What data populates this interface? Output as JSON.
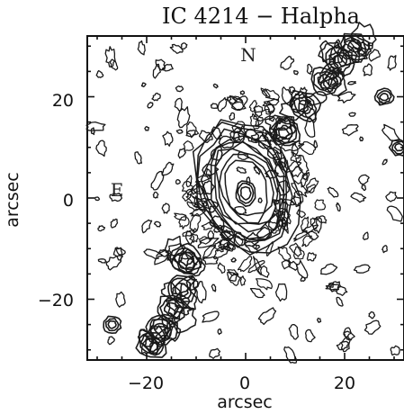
{
  "chart_data": {
    "type": "contour",
    "title": "IC 4214 − Halpha",
    "xlabel": "arcsec",
    "ylabel": "arcsec",
    "xlim": [
      -32,
      32
    ],
    "ylim": [
      -32,
      32
    ],
    "xticks": [
      -20,
      0,
      20
    ],
    "yticks": [
      -20,
      0,
      20
    ],
    "xtick_labels": [
      "−20",
      "0",
      "20"
    ],
    "ytick_labels": [
      "−20",
      "0",
      "20"
    ],
    "annotations": [
      {
        "text": "N",
        "x": 1,
        "y": 29
      },
      {
        "text": "E",
        "x": -25,
        "y": 2
      }
    ],
    "grid": false,
    "ring": {
      "x": 0,
      "y": 2,
      "rx": 8,
      "ry": 11,
      "angle": -20
    },
    "nucleus": {
      "x": 0,
      "y": 1,
      "rx": 2,
      "ry": 2.5
    },
    "arm_upper": [
      {
        "x": 8,
        "y": 13
      },
      {
        "x": 12,
        "y": 18
      },
      {
        "x": 16,
        "y": 23
      },
      {
        "x": 19,
        "y": 27
      },
      {
        "x": 22,
        "y": 30
      }
    ],
    "arm_lower": [
      {
        "x": -12,
        "y": -12
      },
      {
        "x": -13,
        "y": -18
      },
      {
        "x": -15,
        "y": -22
      },
      {
        "x": -17,
        "y": -26
      },
      {
        "x": -19,
        "y": -29
      }
    ],
    "isolated_knots": [
      {
        "x": 28,
        "y": 20
      },
      {
        "x": 31,
        "y": 10
      },
      {
        "x": -27,
        "y": -25
      }
    ]
  }
}
